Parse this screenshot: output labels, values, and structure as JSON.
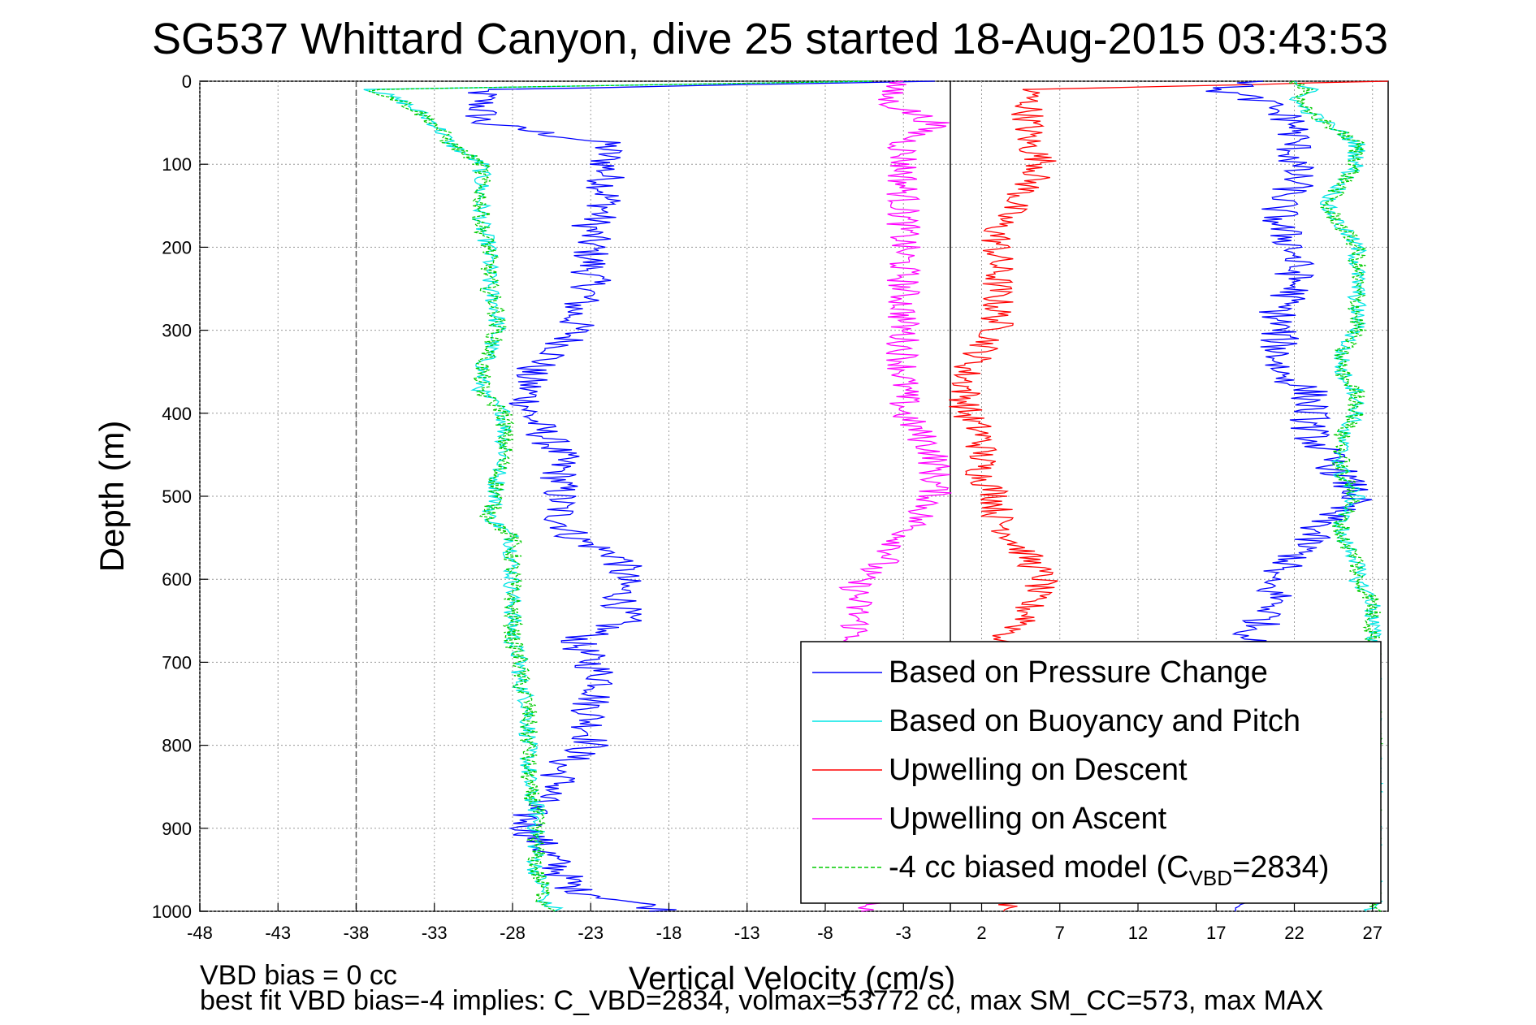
{
  "chart_data": {
    "type": "line",
    "title": "SG537 Whittard Canyon, dive 25 started 18-Aug-2015 03:43:53",
    "xlabel": "Vertical Velocity (cm/s)",
    "ylabel": "Depth (m)",
    "xlim": [
      -48,
      28
    ],
    "ylim": [
      0,
      1000
    ],
    "y_reversed": true,
    "grid": true,
    "legend_position": "bottom-right",
    "x_ticks": [
      "-48",
      "-43",
      "-38",
      "-33",
      "-28",
      "-23",
      "-18",
      "-13",
      "-8",
      "-3",
      "2",
      "7",
      "12",
      "17",
      "22",
      "27"
    ],
    "y_ticks": [
      "0",
      "100",
      "200",
      "300",
      "400",
      "500",
      "600",
      "700",
      "800",
      "900",
      "1000"
    ],
    "reference_lines": [
      {
        "x": -38,
        "style": "dashed",
        "color": "#555555"
      },
      {
        "x": 0,
        "style": "solid",
        "color": "#000000"
      }
    ],
    "depth": [
      0,
      10,
      25,
      50,
      75,
      100,
      125,
      150,
      175,
      200,
      225,
      250,
      275,
      300,
      325,
      350,
      375,
      400,
      425,
      450,
      475,
      500,
      525,
      550,
      575,
      600,
      625,
      650,
      675,
      700,
      725,
      750,
      775,
      800,
      825,
      850,
      875,
      900,
      925,
      950,
      975,
      990,
      1000
    ],
    "series": [
      {
        "name": "Based on Pressure Change",
        "color": "#0000ff",
        "style": "solid",
        "values": [
          -1,
          -30,
          -30,
          -30,
          -22,
          -22,
          -22,
          -22,
          -23,
          -23,
          -23,
          -23,
          -24,
          -24,
          -25,
          -27,
          -27,
          -27,
          -26,
          -25,
          -25,
          -25,
          -25,
          -24,
          -21,
          -21,
          -21,
          -21,
          -24,
          -23,
          -22,
          -23,
          -23,
          -23,
          -25,
          -25,
          -27,
          -27,
          -26,
          -25,
          -24,
          -20,
          -18
        ]
      },
      {
        "name": "Based on Buoyancy and Pitch",
        "color": "#00e5e5",
        "style": "solid",
        "values": [
          -5,
          -37,
          -35,
          -33,
          -32,
          -30,
          -30,
          -30,
          -30,
          -29.5,
          -29.5,
          -29.5,
          -29,
          -29,
          -29.5,
          -30,
          -30,
          -28.5,
          -28.5,
          -28.5,
          -29,
          -29,
          -29.5,
          -28,
          -28,
          -28,
          -28,
          -28,
          -28,
          -27.5,
          -27.5,
          -27,
          -27,
          -27,
          -27,
          -27,
          -26.5,
          -26.5,
          -26.5,
          -26.5,
          -26,
          -26,
          -25
        ]
      },
      {
        "name": "Upwelling on Descent",
        "color": "#ff0000",
        "style": "solid",
        "values": [
          28,
          5,
          5,
          5,
          5,
          6,
          5,
          4,
          3,
          3,
          3,
          3,
          3,
          3,
          2,
          1,
          1,
          1,
          2,
          2,
          2,
          3,
          3,
          4,
          5,
          6,
          5,
          5,
          3,
          3,
          3,
          3,
          3,
          3,
          3,
          4,
          4,
          4,
          4,
          4,
          4,
          4,
          4
        ]
      },
      {
        "name": "Upwelling on Ascent",
        "color": "#ff00ff",
        "style": "solid",
        "values": [
          -3,
          -4,
          -4,
          -1,
          -3,
          -3,
          -3,
          -3,
          -3,
          -3,
          -3,
          -3,
          -3,
          -3,
          -3,
          -3,
          -3,
          -3,
          -2,
          -1,
          -1,
          -1,
          -2,
          -3,
          -4,
          -6,
          -6,
          -6,
          -6,
          -5,
          -5,
          -5,
          -5,
          -5,
          -5,
          -5,
          -5,
          -5,
          -5,
          -5,
          -5,
          -5,
          -5
        ]
      },
      {
        "name": "-4 cc biased model (C",
        "legend_subscript": "VBD",
        "legend_suffix": "=2834)",
        "color": "#00cc00",
        "style": "dashed",
        "values": [
          -5,
          -37,
          -35,
          -33,
          -32,
          -30,
          -30,
          -30,
          -30,
          -29.5,
          -29.5,
          -29.5,
          -29,
          -29,
          -29.5,
          -30,
          -30,
          -28.5,
          -28.5,
          -28.5,
          -29,
          -29,
          -29.5,
          -28,
          -28,
          -28,
          -28,
          -28,
          -28,
          -27.5,
          -27.5,
          -27,
          -27,
          -27,
          -27,
          -27,
          -26.5,
          -26.5,
          -26.5,
          -26.5,
          -26,
          -26,
          -25
        ]
      }
    ],
    "ascent_series": [
      {
        "name": "Based on Pressure Change",
        "color": "#0000ff",
        "values": [
          20,
          17,
          20,
          22,
          22,
          22,
          22,
          21,
          21,
          22,
          22,
          22,
          21,
          21,
          21,
          21,
          23,
          23,
          23,
          24,
          25,
          26,
          24,
          23,
          22,
          20,
          21,
          20,
          19,
          19,
          19,
          19,
          19,
          19,
          19,
          19,
          19,
          19,
          19,
          19,
          19,
          19,
          19
        ]
      },
      {
        "name": "Based on Buoyancy and Pitch",
        "color": "#00e5e5",
        "values": [
          22,
          23,
          22,
          24,
          26,
          26,
          25,
          24,
          25,
          26,
          26,
          26,
          26,
          26,
          25,
          25,
          26,
          26,
          25,
          25,
          25,
          26,
          25,
          25,
          26,
          26,
          27,
          27,
          27,
          27,
          27,
          27,
          27,
          27,
          27,
          27,
          27,
          27,
          27,
          27,
          27,
          27,
          27
        ]
      },
      {
        "name": "-4 cc biased model (C",
        "color": "#00cc00",
        "values": [
          22,
          23,
          22,
          24,
          26,
          26,
          25,
          24,
          25,
          26,
          26,
          26,
          26,
          26,
          25,
          25,
          26,
          26,
          25,
          25,
          25,
          26,
          25,
          25,
          26,
          26,
          27,
          27,
          27,
          27,
          27,
          27,
          27,
          27,
          27,
          27,
          27,
          27,
          27,
          27,
          27,
          27,
          27
        ]
      }
    ],
    "annotations": [
      "VBD bias = 0 cc",
      "best fit VBD bias=-4 implies: C_VBD=2834, volmax=53772 cc, max SM_CC=573, max MAX"
    ]
  }
}
